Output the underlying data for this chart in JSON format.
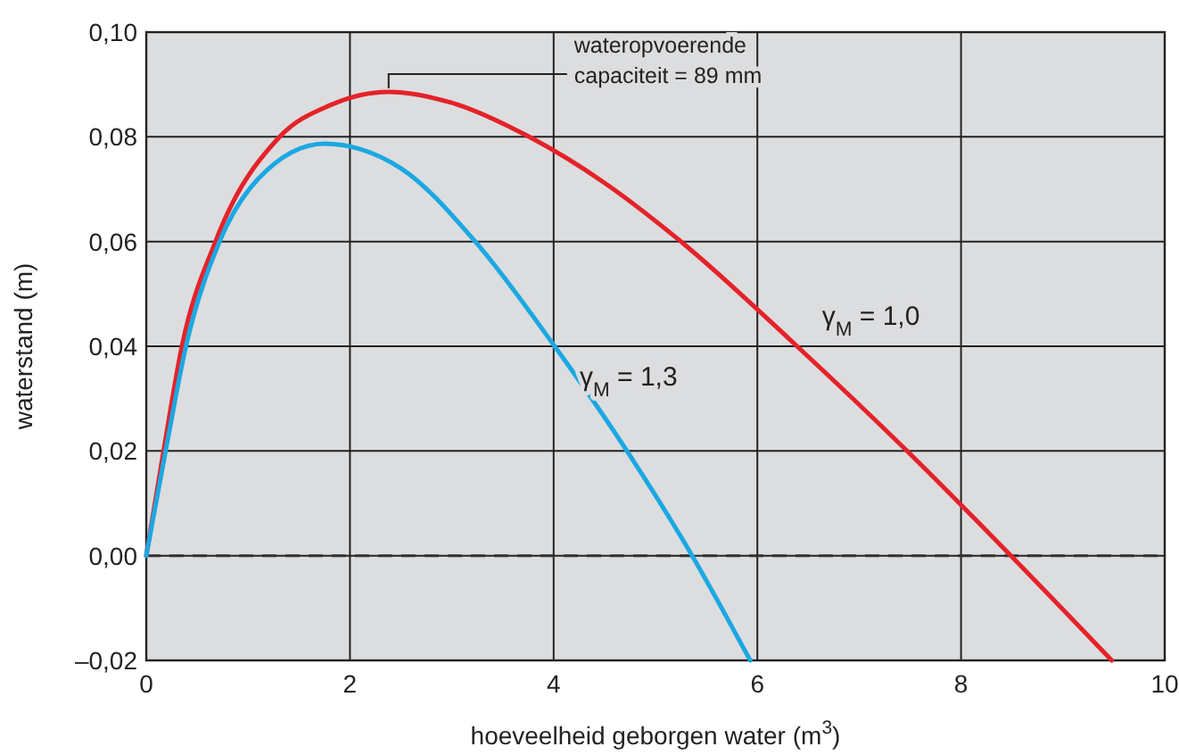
{
  "chart_data": {
    "type": "line",
    "xlabel": "hoeveelheid geborgen water (m$^{3}$)",
    "ylabel": "waterstand (m)",
    "xlim": [
      0,
      10
    ],
    "xticks": [
      0,
      2,
      4,
      6,
      8,
      10
    ],
    "ylim": [
      -0.02,
      0.1
    ],
    "yticks": [
      {
        "value": -0.02,
        "label": "–0,02"
      },
      {
        "value": 0,
        "label": "0,00"
      },
      {
        "value": 0.02,
        "label": "0,02"
      },
      {
        "value": 0.04,
        "label": "0,04"
      },
      {
        "value": 0.06,
        "label": "0,06"
      },
      {
        "value": 0.08,
        "label": "0,08"
      },
      {
        "value": 0.1,
        "label": "0,10"
      }
    ],
    "grid": true,
    "ref_lines": [
      {
        "axis": "y",
        "value": 0,
        "line_style": "dashed",
        "color": "#333333"
      }
    ],
    "annotations": [
      {
        "text": "wateropvoerende\ncapaciteit = 89 mm",
        "x": 2.38,
        "y": 0.0886
      }
    ],
    "series": [
      {
        "name": "γ$_{M}$ = 1,0",
        "color": "#e52229",
        "x": [
          0,
          0.17,
          0.35,
          0.68,
          1.31,
          1.8,
          2.38,
          3,
          3.76,
          4.5,
          5.25,
          6.39,
          7.47,
          8.49,
          9.48
        ],
        "values": [
          0,
          0.02,
          0.04,
          0.06,
          0.08,
          0.086,
          0.0886,
          0.0865,
          0.08,
          0.0712,
          0.06,
          0.04,
          0.02,
          0,
          -0.02
        ]
      },
      {
        "name": "γ$_{M}$ = 1,3",
        "color": "#1ba8e2",
        "x": [
          0,
          0.19,
          0.39,
          0.72,
          1.1,
          1.75,
          2.5,
          3.23,
          4.01,
          4.72,
          5.36,
          5.93
        ],
        "values": [
          0,
          0.02,
          0.04,
          0.06,
          0.072,
          0.0787,
          0.074,
          0.06,
          0.04,
          0.02,
          0,
          -0.02
        ]
      }
    ]
  }
}
